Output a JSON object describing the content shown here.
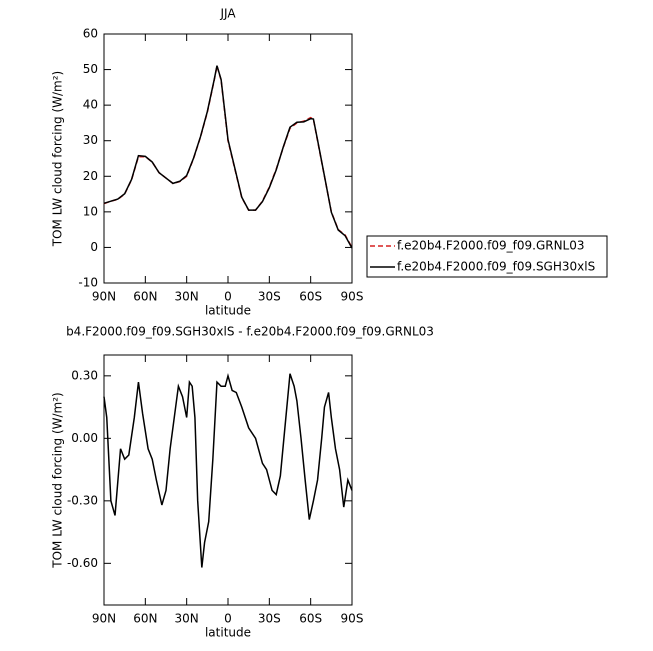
{
  "chart_data": [
    {
      "type": "line",
      "title": "JJA",
      "y_label": "TOM LW cloud forcing (W/m²)",
      "x_label": "latitude",
      "x": [
        90,
        85,
        80,
        75,
        70,
        65,
        60,
        55,
        50,
        45,
        40,
        35,
        30,
        25,
        20,
        15,
        10,
        8,
        5,
        0,
        -5,
        -10,
        -15,
        -20,
        -25,
        -30,
        -35,
        -40,
        -45,
        -50,
        -55,
        -60,
        -62,
        -65,
        -70,
        -75,
        -80,
        -85,
        -90
      ],
      "series": [
        {
          "name": "f.e20b4.F2000.f09_f09.GRNL03",
          "color": "#d62020",
          "line_style": "dashed",
          "values": [
            12.3,
            13,
            13.5,
            15,
            19,
            25.5,
            25.5,
            24,
            21,
            19.5,
            18,
            18.5,
            20,
            25,
            31,
            38,
            47,
            51,
            47,
            30,
            22,
            14,
            10.5,
            10.5,
            13,
            17,
            22,
            28,
            33.5,
            35,
            35.5,
            36.5,
            36,
            30,
            20,
            10,
            5,
            3.5,
            0
          ]
        },
        {
          "name": "f.e20b4.F2000.f09_f09.SGH30xlS",
          "color": "#000000",
          "line_style": "solid",
          "values": [
            12.4,
            13,
            13.6,
            15.1,
            19.1,
            25.8,
            25.6,
            24,
            21,
            19.5,
            18,
            18.6,
            20.2,
            25.1,
            31.1,
            38.2,
            47.2,
            51.1,
            47.2,
            30.3,
            22.2,
            14.1,
            10.5,
            10.5,
            12.9,
            16.8,
            21.8,
            28.1,
            33.8,
            35.2,
            35.3,
            36.2,
            36.1,
            30.2,
            20.1,
            9.9,
            4.9,
            3.3,
            -0.2
          ]
        }
      ],
      "xlim": [
        90,
        -90
      ],
      "xticks": [
        {
          "value": 90,
          "label": "90N"
        },
        {
          "value": 60,
          "label": "60N"
        },
        {
          "value": 30,
          "label": "30N"
        },
        0,
        {
          "value": -30,
          "label": "30S"
        },
        {
          "value": -60,
          "label": "60S"
        },
        {
          "value": -90,
          "label": "90S"
        }
      ],
      "ylim": [
        -10,
        60
      ],
      "yticks": [
        -10,
        0,
        10,
        20,
        30,
        40,
        50,
        60
      ],
      "legend": "right"
    },
    {
      "type": "line",
      "title": "b4.F2000.f09_f09.SGH30xlS - f.e20b4.F2000.f09_f09.GRNL03",
      "y_label": "TOM LW cloud forcing (W/m²)",
      "x_label": "latitude",
      "x": [
        90,
        88,
        85,
        82,
        78,
        75,
        72,
        68,
        65,
        62,
        58,
        55,
        52,
        48,
        45,
        42,
        38,
        36,
        33,
        30,
        28,
        26,
        24,
        22,
        19,
        17,
        14,
        11,
        8,
        5,
        2,
        0,
        -3,
        -6,
        -10,
        -15,
        -20,
        -25,
        -28,
        -32,
        -35,
        -38,
        -42,
        -45,
        -48,
        -50,
        -53,
        -56,
        -59,
        -62,
        -65,
        -68,
        -70,
        -73,
        -75,
        -78,
        -81,
        -84,
        -87,
        -90
      ],
      "values": [
        0.2,
        0.1,
        -0.3,
        -0.37,
        -0.05,
        -0.1,
        -0.08,
        0.1,
        0.27,
        0.12,
        -0.05,
        -0.1,
        -0.2,
        -0.32,
        -0.25,
        -0.05,
        0.15,
        0.25,
        0.2,
        0.1,
        0.27,
        0.25,
        0.1,
        -0.3,
        -0.62,
        -0.5,
        -0.4,
        -0.1,
        0.27,
        0.25,
        0.25,
        0.3,
        0.23,
        0.22,
        0.15,
        0.05,
        0.0,
        -0.12,
        -0.15,
        -0.25,
        -0.27,
        -0.18,
        0.1,
        0.31,
        0.25,
        0.18,
        0.0,
        -0.2,
        -0.39,
        -0.3,
        -0.2,
        0.0,
        0.15,
        0.22,
        0.1,
        -0.05,
        -0.15,
        -0.33,
        -0.2,
        -0.25
      ],
      "color": "#000000",
      "xlim": [
        90,
        -90
      ],
      "xticks": [
        {
          "value": 90,
          "label": "90N"
        },
        {
          "value": 60,
          "label": "60N"
        },
        {
          "value": 30,
          "label": "30N"
        },
        0,
        {
          "value": -30,
          "label": "30S"
        },
        {
          "value": -60,
          "label": "60S"
        },
        {
          "value": -90,
          "label": "90S"
        }
      ],
      "ylim": [
        -0.8,
        0.4
      ],
      "yticks": [
        {
          "value": 0.3,
          "label": "0.30"
        },
        {
          "value": 0,
          "label": "0.00"
        },
        {
          "value": -0.3,
          "label": "-0.30"
        },
        {
          "value": -0.6,
          "label": "-0.60"
        }
      ]
    }
  ]
}
